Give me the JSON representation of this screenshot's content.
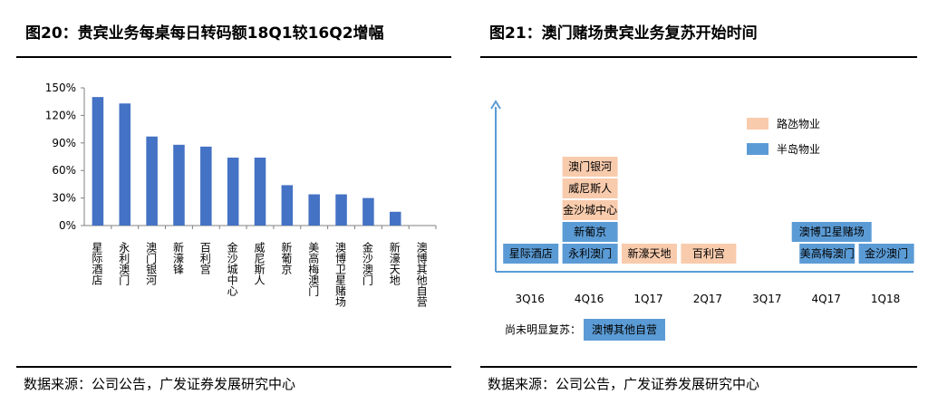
{
  "left_panel": {
    "title": "图20：贵宾业务每桌每日转码额18Q1较16Q2增幅",
    "source": "数据来源：公司公告，广发证券发展研究中心"
  },
  "right_panel": {
    "title": "图21：澳门赌场贵宾业务复苏开始时间",
    "source": "数据来源：公司公告，广发证券发展研究中心"
  },
  "chart_data": [
    {
      "type": "bar",
      "title": "图20：贵宾业务每桌每日转码额18Q1较16Q2增幅",
      "categories": [
        "星际酒店",
        "永利澳门",
        "澳门银河",
        "新濠锋",
        "百利宫",
        "金沙城中心",
        "威尼斯人",
        "新葡京",
        "美高梅澳门",
        "澳博卫星赌场",
        "金沙澳门",
        "新濠天地",
        "澳博其他自营"
      ],
      "values": [
        140,
        133,
        97,
        88,
        86,
        74,
        74,
        44,
        34,
        34,
        30,
        15,
        0
      ],
      "ylim": [
        0,
        150
      ],
      "yticks": [
        "0%",
        "30%",
        "60%",
        "90%",
        "120%",
        "150%"
      ],
      "color": "#4472C4"
    },
    {
      "type": "table",
      "title": "图21：澳门赌场贵宾业务复苏开始时间",
      "periods": [
        "3Q16",
        "4Q16",
        "1Q17",
        "2Q17",
        "3Q17",
        "4Q17",
        "1Q18"
      ],
      "legend": [
        {
          "name": "路氹物业",
          "color": "#F8CBAD"
        },
        {
          "name": "半岛物业",
          "color": "#5B9BD5"
        }
      ],
      "entries": [
        {
          "period": "3Q16",
          "name": "星际酒店",
          "group": "半岛物业",
          "level": 0
        },
        {
          "period": "4Q16",
          "name": "永利澳门",
          "group": "半岛物业",
          "level": 0
        },
        {
          "period": "4Q16",
          "name": "新葡京",
          "group": "半岛物业",
          "level": 1
        },
        {
          "period": "4Q16",
          "name": "金沙城中心",
          "group": "路氹物业",
          "level": 2
        },
        {
          "period": "4Q16",
          "name": "威尼斯人",
          "group": "路氹物业",
          "level": 3
        },
        {
          "period": "4Q16",
          "name": "澳门银河",
          "group": "路氹物业",
          "level": 4
        },
        {
          "period": "1Q17",
          "name": "新濠天地",
          "group": "路氹物业",
          "level": 0
        },
        {
          "period": "2Q17",
          "name": "百利宫",
          "group": "路氹物业",
          "level": 0
        },
        {
          "period": "4Q17",
          "name": "美高梅澳门",
          "group": "半岛物业",
          "level": 0
        },
        {
          "period": "4Q17",
          "name": "澳博卫星赌场",
          "group": "半岛物业",
          "level": 1
        },
        {
          "period": "1Q18",
          "name": "金沙澳门",
          "group": "半岛物业",
          "level": 0
        }
      ],
      "not_recovered_label": "尚未明显复苏：",
      "not_recovered": [
        {
          "name": "澳博其他自营",
          "group": "半岛物业"
        }
      ]
    }
  ]
}
